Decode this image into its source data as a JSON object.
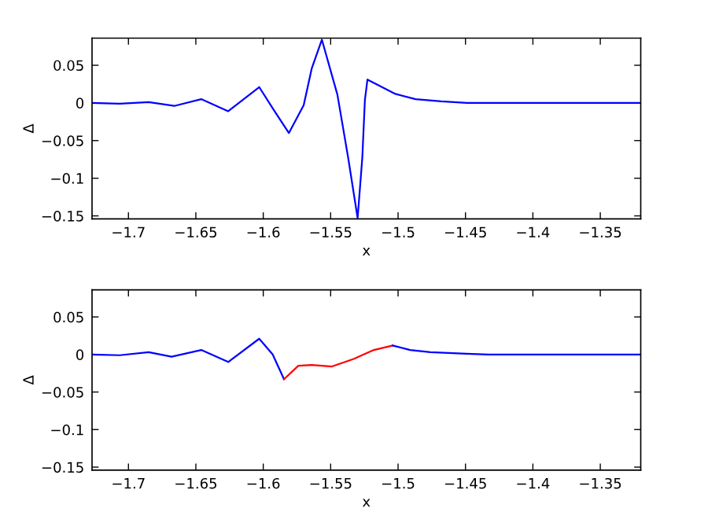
{
  "chart_data": [
    {
      "type": "line",
      "xlabel": "x",
      "ylabel": "Δ",
      "xlim": [
        -1.727,
        -1.32
      ],
      "ylim": [
        -0.154,
        0.086
      ],
      "xticks": [
        {
          "value": -1.7,
          "label": "−1.7"
        },
        {
          "value": -1.65,
          "label": "−1.65"
        },
        {
          "value": -1.6,
          "label": "−1.6"
        },
        {
          "value": -1.55,
          "label": "−1.55"
        },
        {
          "value": -1.5,
          "label": "−1.5"
        },
        {
          "value": -1.45,
          "label": "−1.45"
        },
        {
          "value": -1.4,
          "label": "−1.4"
        },
        {
          "value": -1.35,
          "label": "−1.35"
        }
      ],
      "yticks": [
        {
          "value": -0.15,
          "label": "−0.15"
        },
        {
          "value": -0.1,
          "label": "−0.1"
        },
        {
          "value": -0.05,
          "label": "−0.05"
        },
        0,
        0.05
      ],
      "grid": false,
      "series": [
        {
          "color": "#0000ff",
          "x": [
            -1.727,
            -1.7065,
            -1.685,
            -1.666,
            -1.646,
            -1.626,
            -1.603,
            -1.592,
            -1.581,
            -1.57,
            -1.564,
            -1.5565,
            -1.545,
            -1.537,
            -1.53,
            -1.5265,
            -1.5246,
            -1.5227,
            -1.502,
            -1.487,
            -1.468,
            -1.449,
            -1.32
          ],
          "values": [
            0,
            -0.001,
            0.001,
            -0.004,
            0.005,
            -0.011,
            0.021,
            -0.01,
            -0.04,
            -0.003,
            0.046,
            0.084,
            0.011,
            -0.073,
            -0.153,
            -0.072,
            0.004,
            0.031,
            0.012,
            0.005,
            0.002,
            0,
            0
          ]
        }
      ]
    },
    {
      "type": "line",
      "xlabel": "x",
      "ylabel": "Δ",
      "xlim": [
        -1.727,
        -1.32
      ],
      "ylim": [
        -0.154,
        0.086
      ],
      "xticks": [
        {
          "value": -1.7,
          "label": "−1.7"
        },
        {
          "value": -1.65,
          "label": "−1.65"
        },
        {
          "value": -1.6,
          "label": "−1.6"
        },
        {
          "value": -1.55,
          "label": "−1.55"
        },
        {
          "value": -1.5,
          "label": "−1.5"
        },
        {
          "value": -1.45,
          "label": "−1.45"
        },
        {
          "value": -1.4,
          "label": "−1.4"
        },
        {
          "value": -1.35,
          "label": "−1.35"
        }
      ],
      "yticks": [
        {
          "value": -0.15,
          "label": "−0.15"
        },
        {
          "value": -0.1,
          "label": "−0.1"
        },
        {
          "value": -0.05,
          "label": "−0.05"
        },
        0,
        0.05
      ],
      "grid": false,
      "series": [
        {
          "color": "#0000ff",
          "x": [
            -1.727,
            -1.7065,
            -1.685,
            -1.668,
            -1.646,
            -1.626,
            -1.603,
            -1.593,
            -1.5846
          ],
          "values": [
            0,
            -0.001,
            0.003,
            -0.003,
            0.006,
            -0.01,
            0.021,
            0,
            -0.033
          ]
        },
        {
          "color": "#ff0000",
          "x": [
            -1.5846,
            -1.574,
            -1.564,
            -1.549,
            -1.533,
            -1.518,
            -1.504
          ],
          "values": [
            -0.033,
            -0.015,
            -0.014,
            -0.016,
            -0.006,
            0.006,
            0.012
          ]
        },
        {
          "color": "#0000ff",
          "x": [
            -1.504,
            -1.491,
            -1.476,
            -1.449,
            -1.433,
            -1.32
          ],
          "values": [
            0.012,
            0.006,
            0.003,
            0.001,
            0,
            0
          ]
        }
      ]
    }
  ]
}
